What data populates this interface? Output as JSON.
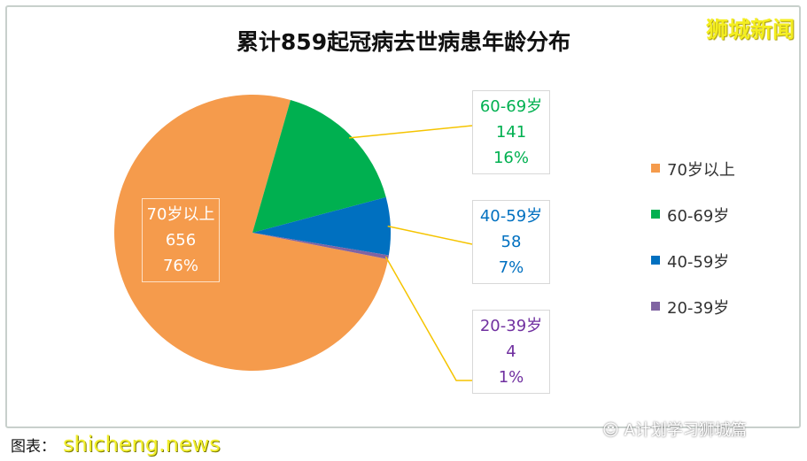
{
  "brand": "狮城新闻",
  "chart_data": {
    "type": "pie",
    "title": "累计859起冠病去世病患年龄分布",
    "categories": [
      "70岁以上",
      "60-69岁",
      "40-59岁",
      "20-39岁"
    ],
    "values": [
      656,
      141,
      58,
      4
    ],
    "percent_labels": [
      "76%",
      "16%",
      "7%",
      "1%"
    ],
    "colors": [
      "#f59b4c",
      "#00b050",
      "#0070c0",
      "#8064a2"
    ],
    "label_colors": [
      "#ffffff",
      "#00b050",
      "#0070c0",
      "#7030a0"
    ],
    "legend_position": "right"
  },
  "footer": {
    "source": "图表：",
    "watermark": "shicheng.news",
    "wechat": "A计划学习狮城篇"
  }
}
